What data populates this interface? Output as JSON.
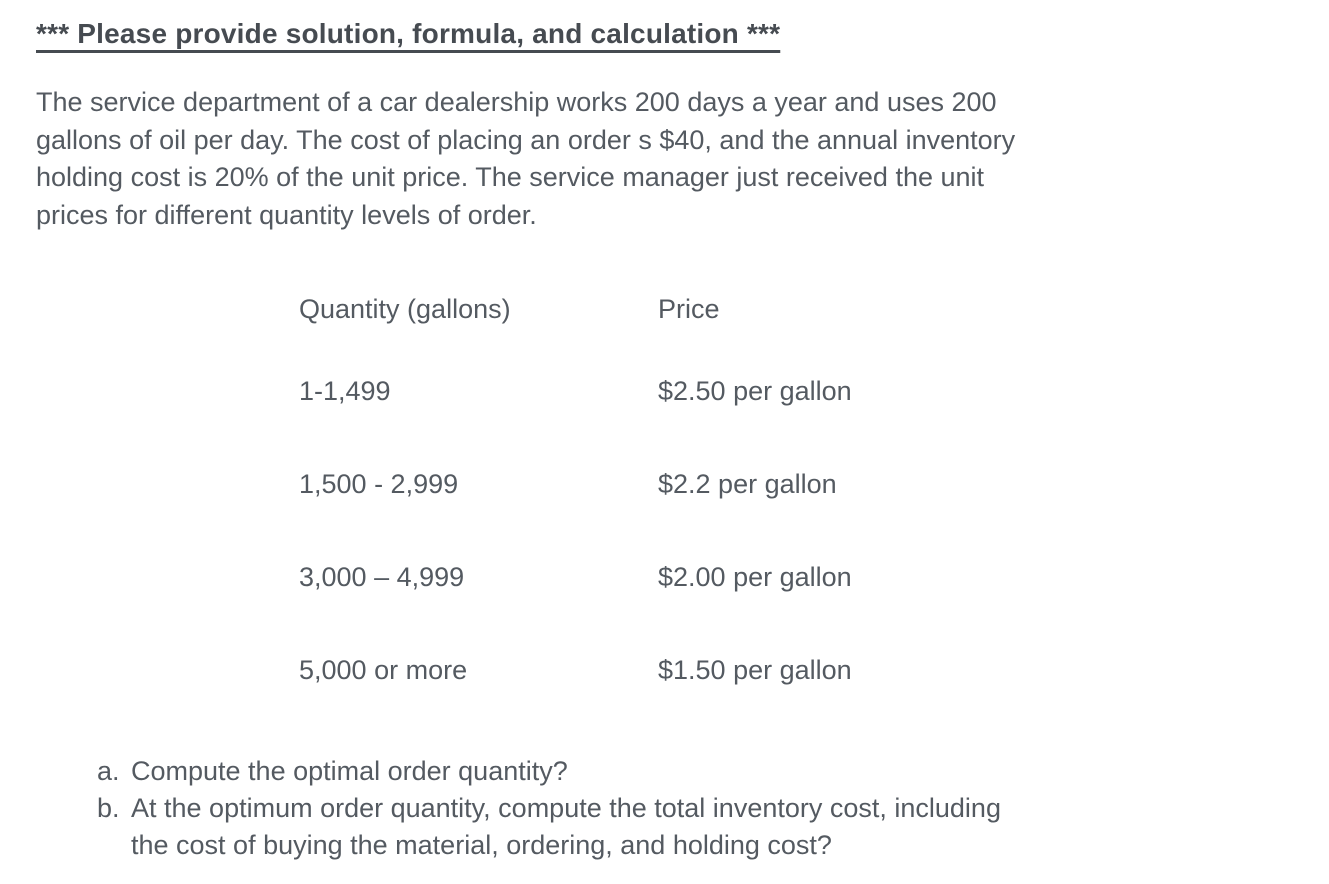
{
  "header": {
    "title": "*** Please provide solution, formula, and calculation ***"
  },
  "problem": {
    "lines": [
      "The service department of a car dealership works 200 days a year and uses 200",
      "gallons of oil per day. The cost of placing an order s $40, and the annual inventory",
      "holding cost is 20% of the unit price. The service manager just received the unit",
      "prices for different quantity levels of order."
    ]
  },
  "price_table": {
    "columns": [
      "Quantity (gallons)",
      "Price"
    ],
    "rows": [
      {
        "quantity": "1-1,499",
        "price": "$2.50 per gallon"
      },
      {
        "quantity": "1,500 - 2,999",
        "price": "$2.2 per gallon"
      },
      {
        "quantity": "3,000 – 4,999",
        "price": "$2.00 per gallon"
      },
      {
        "quantity": "5,000 or more",
        "price": "$1.50 per gallon"
      }
    ]
  },
  "questions": [
    {
      "label": "a.",
      "lines": [
        "Compute the optimal order quantity?"
      ]
    },
    {
      "label": "b.",
      "lines": [
        "At the optimum order quantity, compute the total inventory cost, including",
        "the cost of buying the material, ordering, and holding cost?"
      ]
    }
  ],
  "colors": {
    "background": "#ffffff",
    "body_text": "#545a61",
    "heading_text": "#464b51"
  }
}
